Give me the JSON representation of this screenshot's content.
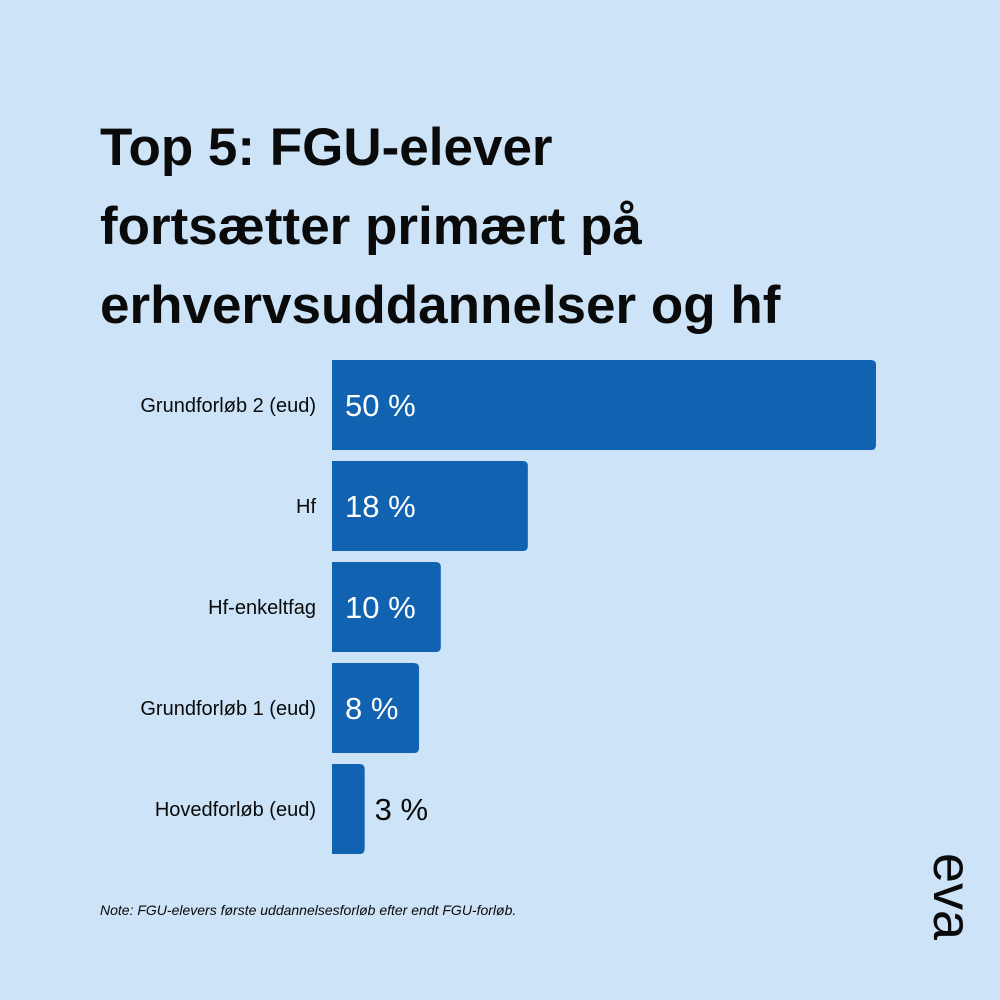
{
  "title_lines": [
    "Top 5: FGU-elever",
    "fortsætter primært på",
    "erhvervsuddannelser og hf"
  ],
  "note": "Note: FGU-elevers første uddannelsesforløb efter endt FGU-forløb.",
  "logo_text": "eva",
  "colors": {
    "background": "#cce3f8",
    "bar": "#1162b0",
    "text": "#0a0a0a",
    "bar_label": "#ffffff"
  },
  "chart_data": {
    "type": "bar",
    "orientation": "horizontal",
    "categories": [
      "Grundforløb 2 (eud)",
      "Hf",
      "Hf-enkeltfag",
      "Grundforløb 1 (eud)",
      "Hovedforløb (eud)"
    ],
    "values": [
      50,
      18,
      10,
      8,
      3
    ],
    "value_labels": [
      "50 %",
      "18 %",
      "10 %",
      "8 %",
      "3 %"
    ],
    "unit": "%",
    "xlim": [
      0,
      50
    ],
    "grid": false,
    "legend": "none"
  }
}
